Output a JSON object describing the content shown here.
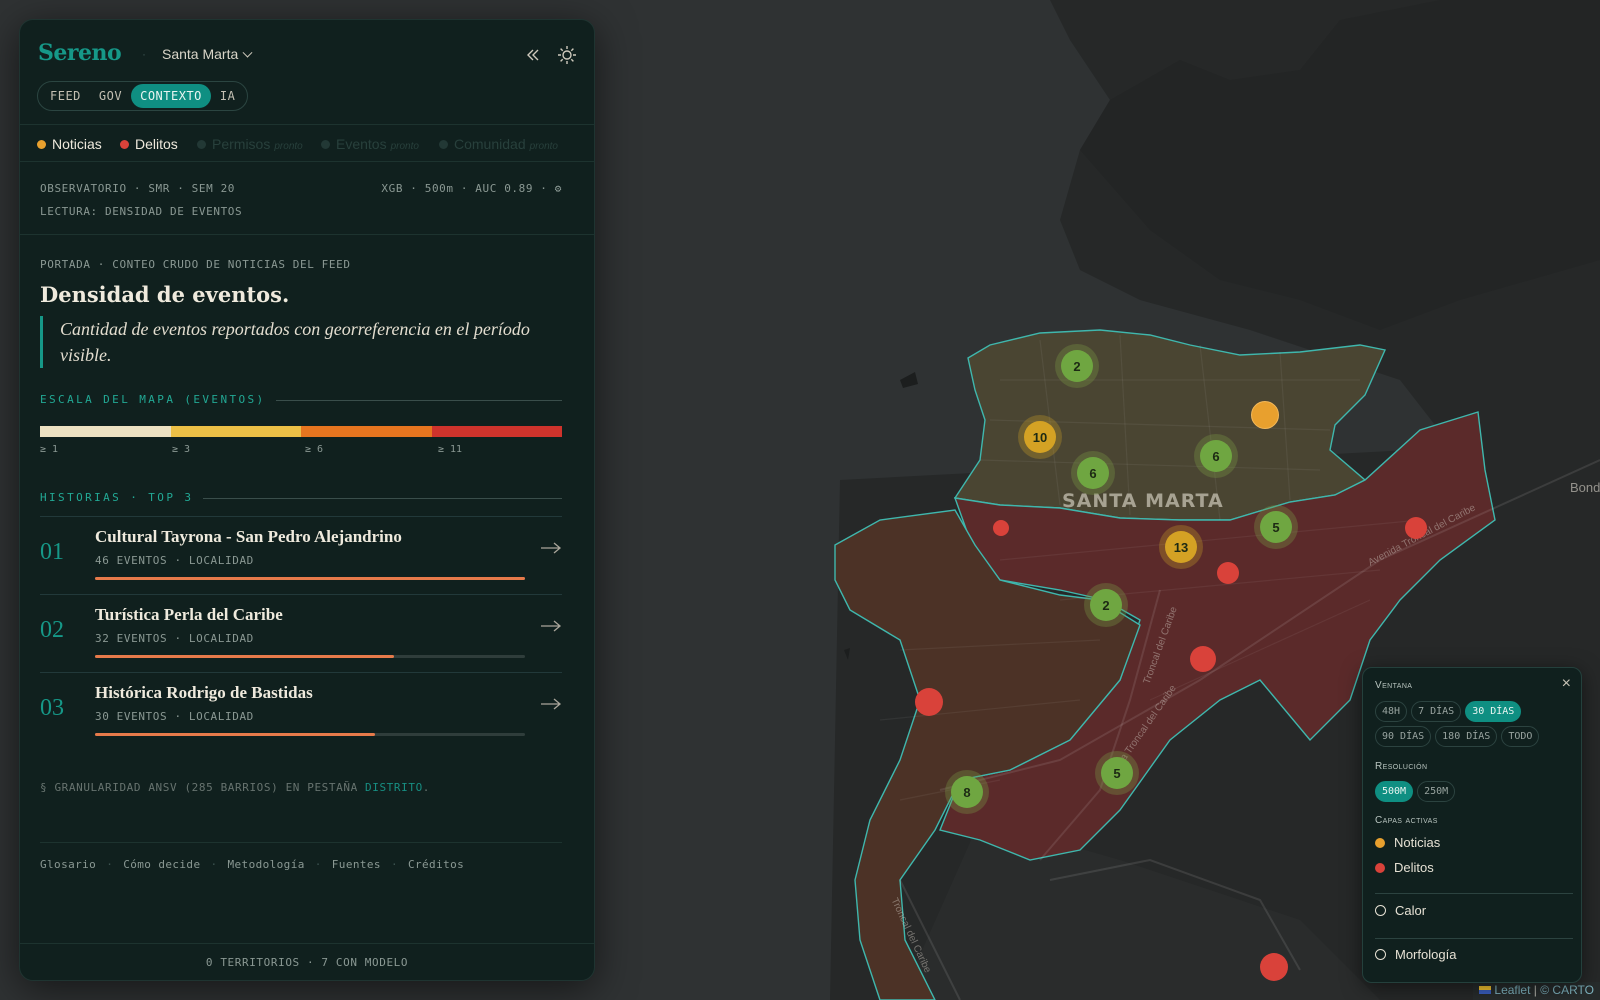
{
  "app": {
    "brand": "Sereno",
    "city": "Santa Marta",
    "tabs": [
      "FEED",
      "GOV",
      "CONTEXTO",
      "IA"
    ],
    "active_tab": "CONTEXTO"
  },
  "layers": [
    {
      "label": "Noticias",
      "color": "#e8a02e",
      "enabled": true,
      "soon": ""
    },
    {
      "label": "Delitos",
      "color": "#d9423a",
      "enabled": true,
      "soon": ""
    },
    {
      "label": "Permisos",
      "color": "#223835",
      "enabled": false,
      "soon": "pronto"
    },
    {
      "label": "Eventos",
      "color": "#223835",
      "enabled": false,
      "soon": "pronto"
    },
    {
      "label": "Comunidad",
      "color": "#223835",
      "enabled": false,
      "soon": "pronto"
    }
  ],
  "observatory": {
    "line1": "OBSERVATORIO · SMR · SEM 20",
    "model": "XGB · 500m · AUC 0.89 ·",
    "line2": "LECTURA: DENSIDAD DE EVENTOS"
  },
  "content": {
    "kicker": "PORTADA · CONTEO CRUDO DE NOTICIAS DEL FEED",
    "title": "Densidad de eventos.",
    "quote": "Cantidad de eventos reportados con georreferencia en el período visible."
  },
  "scale": {
    "heading": "ESCALA DEL MAPA (EVENTOS)",
    "steps": [
      {
        "label": "≥ 1",
        "color": "#ece1c2"
      },
      {
        "label": "≥ 3",
        "color": "#ecc046"
      },
      {
        "label": "≥ 6",
        "color": "#e7751f"
      },
      {
        "label": "≥ 11",
        "color": "#cf332c"
      }
    ]
  },
  "stories": {
    "heading": "HISTORIAS · TOP 3",
    "items": [
      {
        "num": "01",
        "name": "Cultural Tayrona - San Pedro Alejandrino",
        "meta": "46 EVENTOS · LOCALIDAD",
        "count": 46
      },
      {
        "num": "02",
        "name": "Turística Perla del Caribe",
        "meta": "32 EVENTOS · LOCALIDAD",
        "count": 32
      },
      {
        "num": "03",
        "name": "Histórica Rodrigo de Bastidas",
        "meta": "30 EVENTOS · LOCALIDAD",
        "count": 30
      }
    ],
    "max_count": 46
  },
  "granularity": {
    "text": "§ GRANULARIDAD ANSV (285 BARRIOS) EN PESTAÑA ",
    "link": "DISTRITO",
    "end": "."
  },
  "footer_links": [
    "Glosario",
    "Cómo decide",
    "Metodología",
    "Fuentes",
    "Créditos"
  ],
  "footer": "0 TERRITORIOS · 7 CON MODELO",
  "map": {
    "city_label": "SANTA MARTA",
    "edge_label": "Bond",
    "road_labels": [
      "Avenida Troncal del Caribe",
      "Troncal del Caribe",
      "Avenida Troncal del Caribe",
      "Troncal del Caribe"
    ],
    "clusters": [
      "2",
      "10",
      "6",
      "6",
      "5",
      "13",
      "2",
      "5",
      "8"
    ],
    "attribution_leaflet": "Leaflet",
    "attribution_sep": "|",
    "attribution_carto": "© CARTO"
  },
  "control": {
    "window_title": "Ventana",
    "window_options": [
      "48H",
      "7 DÍAS",
      "30 DÍAS",
      "90 DÍAS",
      "180 DÍAS",
      "TODO"
    ],
    "window_active": "30 DÍAS",
    "resolution_title": "Resolución",
    "resolution_options": [
      "500M",
      "250M"
    ],
    "resolution_active": "500M",
    "active_layers_title": "Capas activas",
    "active_layers": [
      {
        "label": "Noticias",
        "color": "#e8a02e"
      },
      {
        "label": "Delitos",
        "color": "#d9423a"
      }
    ],
    "toggles": [
      "Calor",
      "Morfología"
    ],
    "close": "×"
  }
}
